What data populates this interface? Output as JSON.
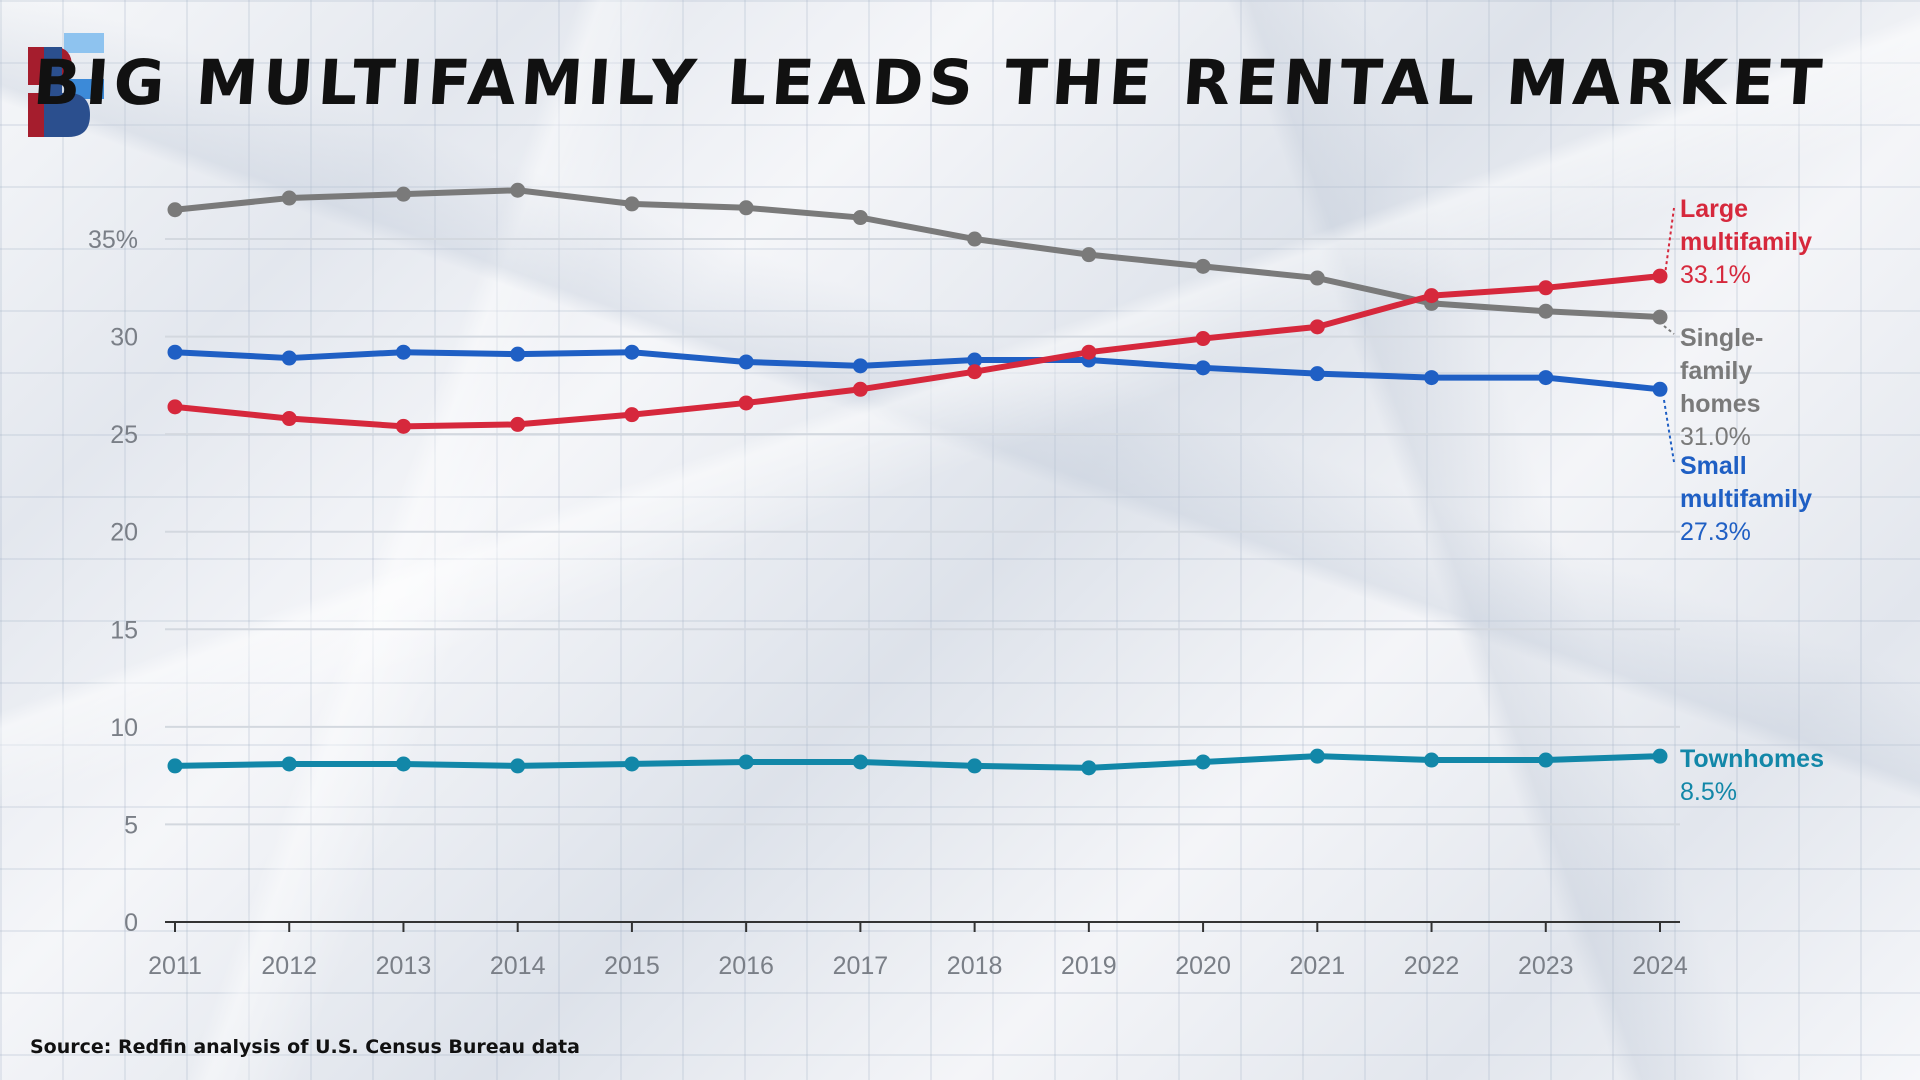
{
  "page": {
    "title": "BIG MULTIFAMILY LEADS THE RENTAL MARKET",
    "source": "Source: Redfin analysis of U.S. Census Bureau data",
    "logo": "brand-b-logo"
  },
  "colors": {
    "large_multifamily": "#d6283c",
    "single_family": "#7a7a7a",
    "small_multifamily": "#1f5fc4",
    "townhomes": "#1287a8",
    "grid": "#d3d8df",
    "axis": "#333333",
    "logo_red": "#a51d2d",
    "logo_blue_dark": "#2b4f8e",
    "logo_blue_mid": "#3c8ad8",
    "logo_blue_light": "#8ec3ef"
  },
  "chart_data": {
    "type": "line",
    "title": "BIG MULTIFAMILY LEADS THE RENTAL MARKET",
    "xlabel": "",
    "ylabel": "",
    "x": [
      2011,
      2012,
      2013,
      2014,
      2015,
      2016,
      2017,
      2018,
      2019,
      2020,
      2021,
      2022,
      2023,
      2024
    ],
    "ylim": [
      0,
      37
    ],
    "yticks": [
      0,
      5,
      10,
      15,
      20,
      25,
      30,
      35
    ],
    "ytick_labels": [
      "0",
      "5",
      "10",
      "15",
      "20",
      "25",
      "30",
      "35%"
    ],
    "grid": true,
    "series": [
      {
        "key": "single_family",
        "name": "Single-family homes",
        "label_lines": [
          "Single-",
          "family",
          "homes"
        ],
        "end_label": "31.0%",
        "values": [
          36.5,
          37.1,
          37.3,
          37.5,
          36.8,
          36.6,
          36.1,
          35.0,
          34.2,
          33.6,
          33.0,
          31.7,
          31.3,
          31.0
        ]
      },
      {
        "key": "large_multifamily",
        "name": "Large multifamily",
        "label_lines": [
          "Large",
          "multifamily"
        ],
        "end_label": "33.1%",
        "values": [
          26.4,
          25.8,
          25.4,
          25.5,
          26.0,
          26.6,
          27.3,
          28.2,
          29.2,
          29.9,
          30.5,
          32.1,
          32.5,
          33.1
        ]
      },
      {
        "key": "small_multifamily",
        "name": "Small multifamily",
        "label_lines": [
          "Small",
          "multifamily"
        ],
        "end_label": "27.3%",
        "values": [
          29.2,
          28.9,
          29.2,
          29.1,
          29.2,
          28.7,
          28.5,
          28.8,
          28.8,
          28.4,
          28.1,
          27.9,
          27.9,
          27.3
        ]
      },
      {
        "key": "townhomes",
        "name": "Townhomes",
        "label_lines": [
          "Townhomes"
        ],
        "end_label": "8.5%",
        "values": [
          8.0,
          8.1,
          8.1,
          8.0,
          8.1,
          8.2,
          8.2,
          8.0,
          7.9,
          8.2,
          8.5,
          8.3,
          8.3,
          8.5
        ]
      }
    ],
    "annotations": [
      {
        "series": "large_multifamily",
        "text": "Large multifamily 33.1%"
      },
      {
        "series": "single_family",
        "text": "Single-family homes 31.0%"
      },
      {
        "series": "small_multifamily",
        "text": "Small multifamily 27.3%"
      },
      {
        "series": "townhomes",
        "text": "Townhomes 8.5%"
      }
    ]
  }
}
